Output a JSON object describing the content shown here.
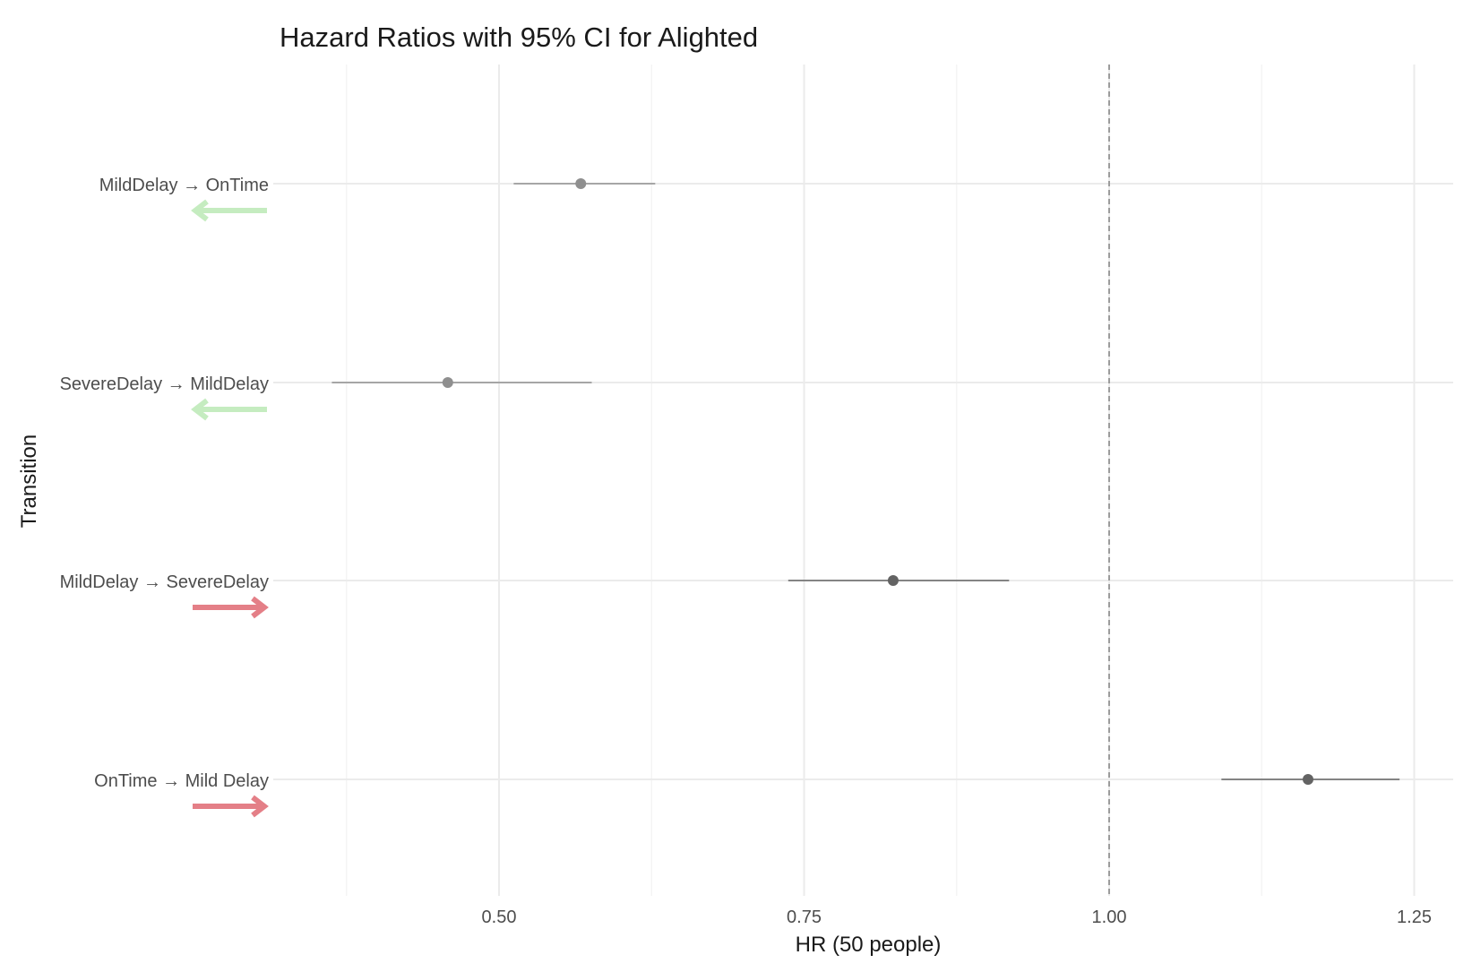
{
  "chart_data": {
    "type": "scatter",
    "subtype": "forest-plot",
    "title": "Hazard Ratios with 95% CI for Alighted",
    "xlabel": "HR (50 people)",
    "ylabel": "Transition",
    "xlim": [
      0.28,
      1.27
    ],
    "xticks": [
      0.5,
      0.75,
      1.0,
      1.25
    ],
    "xtick_labels": [
      "0.50",
      "0.75",
      "1.00",
      "1.25"
    ],
    "reference_line": 1.0,
    "grid": true,
    "legend": "none",
    "rows": [
      {
        "label": "MildDelay → OnTime",
        "hr": 0.567,
        "lower": 0.512,
        "upper": 0.628,
        "direction": "left",
        "arrow_color": "#c5ecc0",
        "point_color": "#8f8f8f"
      },
      {
        "label": "SevereDelay → MildDelay",
        "hr": 0.458,
        "lower": 0.363,
        "upper": 0.576,
        "direction": "left",
        "arrow_color": "#c5ecc0",
        "point_color": "#8f8f8f"
      },
      {
        "label": "MildDelay → SevereDelay",
        "hr": 0.823,
        "lower": 0.737,
        "upper": 0.918,
        "direction": "right",
        "arrow_color": "#e47f87",
        "point_color": "#636363"
      },
      {
        "label": "OnTime → Mild Delay",
        "hr": 1.163,
        "lower": 1.092,
        "upper": 1.238,
        "direction": "right",
        "arrow_color": "#e47f87",
        "point_color": "#636363"
      }
    ]
  }
}
